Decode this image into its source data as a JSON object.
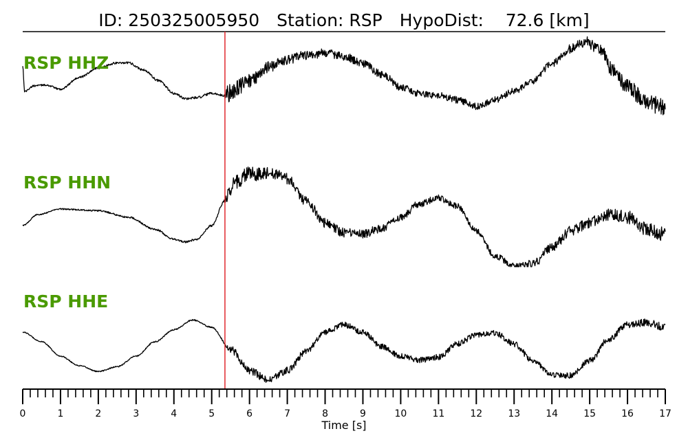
{
  "title": {
    "id": "ID: 250325005950",
    "station": "Station: RSP",
    "hypodist": "HypoDist:    72.6 [km]"
  },
  "colors": {
    "label": "#4a9a00",
    "trace": "#000000",
    "pick": "#e0262b"
  },
  "chart_data": {
    "type": "line",
    "title": "ID: 250325005950   Station: RSP   HypoDist:    72.6 [km]",
    "xlabel": "Time [s]",
    "ylabel": "",
    "xlim": [
      0,
      17
    ],
    "x_tick_labels": [
      "0",
      "1",
      "2",
      "3",
      "4",
      "5",
      "6",
      "7",
      "8",
      "9",
      "10",
      "11",
      "12",
      "13",
      "14",
      "15",
      "16",
      "17"
    ],
    "minor_tick_step": 0.2,
    "grid": false,
    "pick_time_s": 5.35,
    "series": [
      {
        "name": "RSP HHZ",
        "ylim": [
          -1,
          1
        ],
        "knots": [
          [
            0.0,
            0.15
          ],
          [
            0.05,
            -0.45
          ],
          [
            0.3,
            -0.32
          ],
          [
            0.6,
            -0.3
          ],
          [
            1.0,
            -0.4
          ],
          [
            1.5,
            -0.12
          ],
          [
            2.0,
            0.1
          ],
          [
            2.5,
            0.22
          ],
          [
            2.8,
            0.22
          ],
          [
            3.2,
            0.05
          ],
          [
            3.6,
            -0.2
          ],
          [
            4.0,
            -0.5
          ],
          [
            4.3,
            -0.62
          ],
          [
            4.6,
            -0.6
          ],
          [
            5.0,
            -0.5
          ],
          [
            5.35,
            -0.55
          ],
          [
            5.6,
            -0.4
          ],
          [
            6.0,
            -0.2
          ],
          [
            6.5,
            0.12
          ],
          [
            7.0,
            0.3
          ],
          [
            7.5,
            0.4
          ],
          [
            8.0,
            0.45
          ],
          [
            8.5,
            0.38
          ],
          [
            9.0,
            0.2
          ],
          [
            9.5,
            -0.05
          ],
          [
            10.0,
            -0.35
          ],
          [
            10.5,
            -0.5
          ],
          [
            11.0,
            -0.55
          ],
          [
            11.5,
            -0.65
          ],
          [
            12.0,
            -0.8
          ],
          [
            12.5,
            -0.65
          ],
          [
            13.0,
            -0.45
          ],
          [
            13.5,
            -0.2
          ],
          [
            14.0,
            0.2
          ],
          [
            14.5,
            0.55
          ],
          [
            14.9,
            0.72
          ],
          [
            15.3,
            0.5
          ],
          [
            15.6,
            0.05
          ],
          [
            16.0,
            -0.35
          ],
          [
            16.5,
            -0.7
          ],
          [
            17.0,
            -0.85
          ]
        ],
        "noise": [
          [
            0,
            0.02
          ],
          [
            5.35,
            0.03
          ],
          [
            5.4,
            0.22
          ],
          [
            6.8,
            0.12
          ],
          [
            10.5,
            0.08
          ],
          [
            14.0,
            0.08
          ],
          [
            15.5,
            0.16
          ],
          [
            17.0,
            0.22
          ]
        ]
      },
      {
        "name": "RSP HHN",
        "ylim": [
          -1,
          1
        ],
        "knots": [
          [
            0.0,
            -0.25
          ],
          [
            0.4,
            -0.05
          ],
          [
            1.0,
            0.05
          ],
          [
            2.0,
            0.02
          ],
          [
            2.8,
            -0.1
          ],
          [
            3.5,
            -0.32
          ],
          [
            4.0,
            -0.5
          ],
          [
            4.3,
            -0.55
          ],
          [
            4.6,
            -0.5
          ],
          [
            5.0,
            -0.25
          ],
          [
            5.35,
            0.2
          ],
          [
            5.6,
            0.55
          ],
          [
            6.0,
            0.68
          ],
          [
            6.5,
            0.72
          ],
          [
            7.0,
            0.6
          ],
          [
            7.5,
            0.2
          ],
          [
            8.0,
            -0.2
          ],
          [
            8.5,
            -0.38
          ],
          [
            9.0,
            -0.4
          ],
          [
            9.5,
            -0.3
          ],
          [
            10.0,
            -0.1
          ],
          [
            10.5,
            0.15
          ],
          [
            11.0,
            0.25
          ],
          [
            11.5,
            0.1
          ],
          [
            12.0,
            -0.35
          ],
          [
            12.5,
            -0.8
          ],
          [
            13.0,
            -1.0
          ],
          [
            13.5,
            -0.95
          ],
          [
            14.0,
            -0.65
          ],
          [
            14.5,
            -0.35
          ],
          [
            15.0,
            -0.2
          ],
          [
            15.5,
            -0.05
          ],
          [
            16.0,
            -0.1
          ],
          [
            16.5,
            -0.3
          ],
          [
            17.0,
            -0.4
          ]
        ],
        "noise": [
          [
            0,
            0.01
          ],
          [
            5.35,
            0.02
          ],
          [
            5.4,
            0.16
          ],
          [
            7.0,
            0.1
          ],
          [
            9.0,
            0.08
          ],
          [
            12.0,
            0.05
          ],
          [
            15.0,
            0.1
          ],
          [
            17.0,
            0.14
          ]
        ]
      },
      {
        "name": "RSP HHE",
        "ylim": [
          -1,
          1
        ],
        "knots": [
          [
            0.0,
            0.1
          ],
          [
            0.5,
            -0.1
          ],
          [
            1.0,
            -0.4
          ],
          [
            1.5,
            -0.6
          ],
          [
            2.0,
            -0.72
          ],
          [
            2.5,
            -0.62
          ],
          [
            3.0,
            -0.4
          ],
          [
            3.5,
            -0.1
          ],
          [
            4.0,
            0.15
          ],
          [
            4.5,
            0.35
          ],
          [
            5.0,
            0.2
          ],
          [
            5.5,
            -0.25
          ],
          [
            6.0,
            -0.7
          ],
          [
            6.5,
            -0.9
          ],
          [
            7.0,
            -0.7
          ],
          [
            7.5,
            -0.3
          ],
          [
            8.0,
            0.1
          ],
          [
            8.5,
            0.25
          ],
          [
            9.0,
            0.1
          ],
          [
            9.5,
            -0.2
          ],
          [
            10.0,
            -0.4
          ],
          [
            10.5,
            -0.48
          ],
          [
            11.0,
            -0.42
          ],
          [
            11.5,
            -0.15
          ],
          [
            12.0,
            0.05
          ],
          [
            12.5,
            0.08
          ],
          [
            13.0,
            -0.15
          ],
          [
            13.5,
            -0.5
          ],
          [
            14.0,
            -0.8
          ],
          [
            14.5,
            -0.8
          ],
          [
            15.0,
            -0.5
          ],
          [
            15.5,
            -0.05
          ],
          [
            16.0,
            0.25
          ],
          [
            16.5,
            0.3
          ],
          [
            17.0,
            0.2
          ]
        ],
        "noise": [
          [
            0,
            0.01
          ],
          [
            5.35,
            0.015
          ],
          [
            5.5,
            0.09
          ],
          [
            8.0,
            0.06
          ],
          [
            14.0,
            0.06
          ],
          [
            17.0,
            0.08
          ]
        ]
      }
    ]
  }
}
